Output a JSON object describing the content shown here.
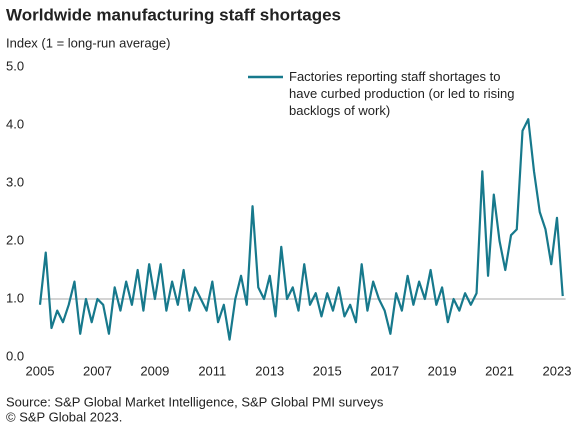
{
  "chart_data": {
    "type": "line",
    "title": "Worldwide manufacturing staff shortages",
    "subtitle": "Index (1 = long-run average)",
    "source": [
      "Source: S&P Global Market Intelligence, S&P Global PMI surveys",
      "© S&P Global 2023."
    ],
    "x": [
      2005.0,
      2005.2,
      2005.4,
      2005.6,
      2005.8,
      2006.0,
      2006.2,
      2006.4,
      2006.6,
      2006.8,
      2007.0,
      2007.2,
      2007.4,
      2007.6,
      2007.8,
      2008.0,
      2008.2,
      2008.4,
      2008.6,
      2008.8,
      2009.0,
      2009.2,
      2009.4,
      2009.6,
      2009.8,
      2010.0,
      2010.2,
      2010.4,
      2010.6,
      2010.8,
      2011.0,
      2011.2,
      2011.4,
      2011.6,
      2011.8,
      2012.0,
      2012.2,
      2012.4,
      2012.6,
      2012.8,
      2013.0,
      2013.2,
      2013.4,
      2013.6,
      2013.8,
      2014.0,
      2014.2,
      2014.4,
      2014.6,
      2014.8,
      2015.0,
      2015.2,
      2015.4,
      2015.6,
      2015.8,
      2016.0,
      2016.2,
      2016.4,
      2016.6,
      2016.8,
      2017.0,
      2017.2,
      2017.4,
      2017.6,
      2017.8,
      2018.0,
      2018.2,
      2018.4,
      2018.6,
      2018.8,
      2019.0,
      2019.2,
      2019.4,
      2019.6,
      2019.8,
      2020.0,
      2020.2,
      2020.4,
      2020.6,
      2020.8,
      2021.0,
      2021.2,
      2021.4,
      2021.6,
      2021.8,
      2022.0,
      2022.2,
      2022.4,
      2022.6,
      2022.8,
      2023.0,
      2023.2
    ],
    "series": [
      {
        "name": "Factories reporting staff shortages to have curbed production (or led to rising backlogs of work)",
        "color": "#17798c",
        "values": [
          0.9,
          1.8,
          0.5,
          0.8,
          0.6,
          0.9,
          1.3,
          0.4,
          1.0,
          0.6,
          1.0,
          0.9,
          0.4,
          1.2,
          0.8,
          1.3,
          0.9,
          1.5,
          0.8,
          1.6,
          1.0,
          1.6,
          0.8,
          1.3,
          0.9,
          1.5,
          0.8,
          1.2,
          1.0,
          0.8,
          1.3,
          0.6,
          0.9,
          0.3,
          1.0,
          1.4,
          0.9,
          2.6,
          1.2,
          1.0,
          1.4,
          0.7,
          1.9,
          1.0,
          1.2,
          0.8,
          1.6,
          0.9,
          1.1,
          0.7,
          1.1,
          0.8,
          1.2,
          0.7,
          0.9,
          0.6,
          1.6,
          0.8,
          1.3,
          1.0,
          0.8,
          0.4,
          1.1,
          0.8,
          1.4,
          0.9,
          1.3,
          1.0,
          1.5,
          0.9,
          1.2,
          0.6,
          1.0,
          0.8,
          1.1,
          0.9,
          1.1,
          3.2,
          1.4,
          2.8,
          2.0,
          1.5,
          2.1,
          2.2,
          3.9,
          4.1,
          3.2,
          2.5,
          2.2,
          1.6,
          2.4,
          1.05
        ]
      }
    ],
    "hline": 1,
    "xlim": [
      2005,
      2023.3
    ],
    "xticks": [
      2005,
      2007,
      2009,
      2011,
      2013,
      2015,
      2017,
      2019,
      2021,
      2023
    ],
    "ylim": [
      0,
      5
    ],
    "yticks": [
      {
        "value": 0,
        "label": "0.0"
      },
      {
        "value": 1,
        "label": "1.0"
      },
      {
        "value": 2,
        "label": "2.0"
      },
      {
        "value": 3,
        "label": "3.0"
      },
      {
        "value": 4,
        "label": "4.0"
      },
      {
        "value": 5,
        "label": "5.0"
      }
    ],
    "grid": false
  }
}
